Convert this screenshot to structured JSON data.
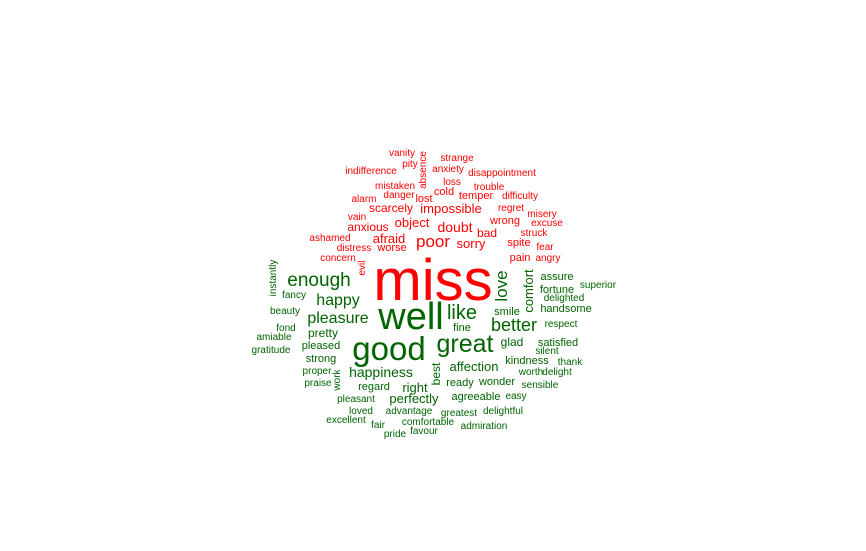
{
  "colors": {
    "negative": "#ff0000",
    "positive": "#006400",
    "background": "#ffffff"
  },
  "words": [
    {
      "text": "miss",
      "group": "negative"
    },
    {
      "text": "well",
      "group": "positive"
    },
    {
      "text": "good",
      "group": "positive"
    },
    {
      "text": "great",
      "group": "positive"
    },
    {
      "text": "like",
      "group": "positive"
    },
    {
      "text": "enough",
      "group": "positive"
    },
    {
      "text": "better",
      "group": "positive"
    },
    {
      "text": "love",
      "group": "positive"
    },
    {
      "text": "poor",
      "group": "negative"
    },
    {
      "text": "happy",
      "group": "positive"
    },
    {
      "text": "pleasure",
      "group": "positive"
    },
    {
      "text": "happiness",
      "group": "positive"
    },
    {
      "text": "doubt",
      "group": "negative"
    },
    {
      "text": "sorry",
      "group": "negative"
    },
    {
      "text": "afraid",
      "group": "negative"
    },
    {
      "text": "impossible",
      "group": "negative"
    },
    {
      "text": "object",
      "group": "negative"
    },
    {
      "text": "comfort",
      "group": "positive"
    },
    {
      "text": "affection",
      "group": "positive"
    },
    {
      "text": "perfectly",
      "group": "positive"
    },
    {
      "text": "right",
      "group": "positive"
    },
    {
      "text": "best",
      "group": "positive"
    },
    {
      "text": "glad",
      "group": "positive"
    },
    {
      "text": "scarcely",
      "group": "negative"
    },
    {
      "text": "anxious",
      "group": "negative"
    },
    {
      "text": "pretty",
      "group": "positive"
    },
    {
      "text": "bad",
      "group": "negative"
    },
    {
      "text": "wrong",
      "group": "negative"
    },
    {
      "text": "worse",
      "group": "negative"
    },
    {
      "text": "spite",
      "group": "negative"
    },
    {
      "text": "pain",
      "group": "negative"
    },
    {
      "text": "temper",
      "group": "negative"
    },
    {
      "text": "fine",
      "group": "positive"
    },
    {
      "text": "smile",
      "group": "positive"
    },
    {
      "text": "pleased",
      "group": "positive"
    },
    {
      "text": "strong",
      "group": "positive"
    },
    {
      "text": "assure",
      "group": "positive"
    },
    {
      "text": "fortune",
      "group": "positive"
    },
    {
      "text": "kindness",
      "group": "positive"
    },
    {
      "text": "satisfied",
      "group": "positive"
    },
    {
      "text": "agreeable",
      "group": "positive"
    },
    {
      "text": "wonder",
      "group": "positive"
    },
    {
      "text": "ready",
      "group": "positive"
    },
    {
      "text": "regard",
      "group": "positive"
    },
    {
      "text": "handsome",
      "group": "positive"
    },
    {
      "text": "cold",
      "group": "negative"
    },
    {
      "text": "lost",
      "group": "negative"
    },
    {
      "text": "danger",
      "group": "negative"
    },
    {
      "text": "mistaken",
      "group": "negative"
    },
    {
      "text": "absence",
      "group": "negative"
    },
    {
      "text": "anxiety",
      "group": "negative"
    },
    {
      "text": "loss",
      "group": "negative"
    },
    {
      "text": "strange",
      "group": "negative"
    },
    {
      "text": "pity",
      "group": "negative"
    },
    {
      "text": "vanity",
      "group": "negative"
    },
    {
      "text": "indifference",
      "group": "negative"
    },
    {
      "text": "disappointment",
      "group": "negative"
    },
    {
      "text": "trouble",
      "group": "negative"
    },
    {
      "text": "difficulty",
      "group": "negative"
    },
    {
      "text": "regret",
      "group": "negative"
    },
    {
      "text": "misery",
      "group": "negative"
    },
    {
      "text": "excuse",
      "group": "negative"
    },
    {
      "text": "struck",
      "group": "negative"
    },
    {
      "text": "fear",
      "group": "negative"
    },
    {
      "text": "angry",
      "group": "negative"
    },
    {
      "text": "alarm",
      "group": "negative"
    },
    {
      "text": "vain",
      "group": "negative"
    },
    {
      "text": "ashamed",
      "group": "negative"
    },
    {
      "text": "distress",
      "group": "negative"
    },
    {
      "text": "concern",
      "group": "negative"
    },
    {
      "text": "evil",
      "group": "negative"
    },
    {
      "text": "instantly",
      "group": "positive"
    },
    {
      "text": "fancy",
      "group": "positive"
    },
    {
      "text": "beauty",
      "group": "positive"
    },
    {
      "text": "fond",
      "group": "positive"
    },
    {
      "text": "amiable",
      "group": "positive"
    },
    {
      "text": "gratitude",
      "group": "positive"
    },
    {
      "text": "proper",
      "group": "positive"
    },
    {
      "text": "praise",
      "group": "positive"
    },
    {
      "text": "work",
      "group": "positive"
    },
    {
      "text": "pleasant",
      "group": "positive"
    },
    {
      "text": "loved",
      "group": "positive"
    },
    {
      "text": "excellent",
      "group": "positive"
    },
    {
      "text": "fair",
      "group": "positive"
    },
    {
      "text": "pride",
      "group": "positive"
    },
    {
      "text": "favour",
      "group": "positive"
    },
    {
      "text": "comfortable",
      "group": "positive"
    },
    {
      "text": "advantage",
      "group": "positive"
    },
    {
      "text": "greatest",
      "group": "positive"
    },
    {
      "text": "delightful",
      "group": "positive"
    },
    {
      "text": "admiration",
      "group": "positive"
    },
    {
      "text": "easy",
      "group": "positive"
    },
    {
      "text": "sensible",
      "group": "positive"
    },
    {
      "text": "worth",
      "group": "positive"
    },
    {
      "text": "delight",
      "group": "positive"
    },
    {
      "text": "thank",
      "group": "positive"
    },
    {
      "text": "silent",
      "group": "positive"
    },
    {
      "text": "respect",
      "group": "positive"
    },
    {
      "text": "delighted",
      "group": "positive"
    },
    {
      "text": "superior",
      "group": "positive"
    }
  ]
}
